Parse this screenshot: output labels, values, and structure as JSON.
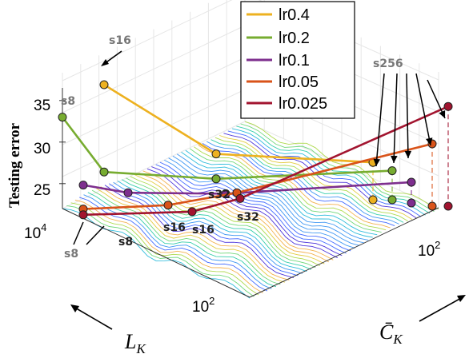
{
  "chart_data": {
    "type": "line",
    "title": "",
    "zlabel": "Testing error",
    "xlabel": "L_K",
    "ylabel": "C̄_K",
    "xlabel_parts": {
      "base": "L",
      "sub": "K"
    },
    "ylabel_parts": {
      "base": "C̄",
      "sub": "K"
    },
    "z_ticks": [
      "25",
      "30",
      "35"
    ],
    "x_ticks": [
      "10",
      "10"
    ],
    "x_tick_exponents": [
      "4",
      "2"
    ],
    "y_ticks": [
      "10"
    ],
    "y_tick_exponents": [
      "2"
    ],
    "zlim": [
      22,
      38
    ],
    "x_categories": [
      "s8",
      "s16",
      "s32",
      "s256"
    ],
    "grid": true,
    "legend_position": "top-right",
    "series": [
      {
        "name": "lr0.4",
        "color": "#EDB120",
        "values": [
          null,
          37,
          28,
          26.5
        ]
      },
      {
        "name": "lr0.2",
        "color": "#77AC30",
        "values": [
          33,
          26.5,
          25,
          25.5
        ]
      },
      {
        "name": "lr0.1",
        "color": "#7E2F8E",
        "values": [
          25.5,
          24,
          23.5,
          24.5
        ]
      },
      {
        "name": "lr0.05",
        "color": "#D95319",
        "values": [
          23,
          22.8,
          24,
          29.5
        ]
      },
      {
        "name": "lr0.025",
        "color": "#A2142F",
        "values": [
          22.5,
          22.3,
          23.5,
          34
        ]
      }
    ],
    "annotations": [
      "s16",
      "s8",
      "s256",
      "s32",
      "s32",
      "s16",
      "s16",
      "s8",
      "s8"
    ]
  }
}
